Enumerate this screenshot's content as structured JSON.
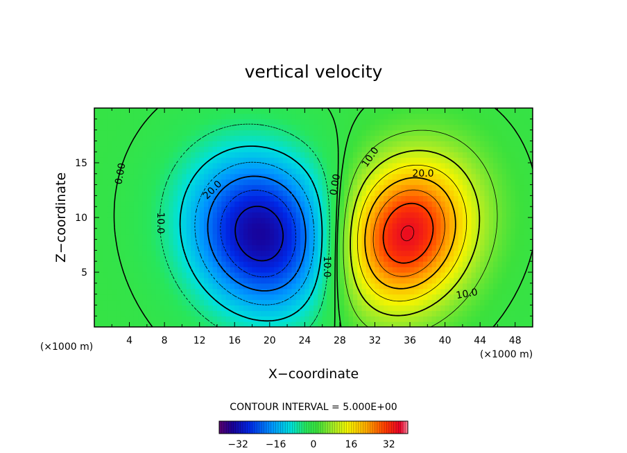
{
  "chart_data": {
    "type": "heatmap",
    "title": "vertical velocity",
    "xlabel": "X−coordinate",
    "ylabel": "Z−coordinate",
    "x_unit": "(×1000 m)",
    "y_unit": "(×1000 m)",
    "xlim": [
      0,
      50
    ],
    "ylim": [
      0,
      20
    ],
    "x_ticks": [
      4,
      8,
      12,
      16,
      20,
      24,
      28,
      32,
      36,
      40,
      44,
      48
    ],
    "y_ticks": [
      5,
      10,
      15
    ],
    "x_tick_labels": [
      "4",
      "8",
      "12",
      "16",
      "20",
      "24",
      "28",
      "32",
      "36",
      "40",
      "44",
      "48"
    ],
    "y_tick_labels": [
      "5",
      "10",
      "15"
    ],
    "contour_interval_text": "CONTOUR INTERVAL = 5.000E+00",
    "contour_interval": 5,
    "colorbar": {
      "range": [
        -40,
        40
      ],
      "ticks": [
        -32,
        -16,
        0,
        16,
        32
      ],
      "tick_labels": [
        "−32",
        "−16",
        "0",
        "16",
        "32"
      ]
    },
    "field": {
      "components": [
        {
          "name": "downdraft",
          "center_x": 19,
          "center_z": 8.5,
          "sigma_x": 6,
          "sigma_z": 5,
          "peak": -34,
          "rotation_deg": -20
        },
        {
          "name": "updraft",
          "center_x": 35.5,
          "center_z": 8.5,
          "sigma_x": 5.5,
          "sigma_z": 4.5,
          "peak": 36,
          "rotation_deg": 30
        }
      ]
    },
    "contour_labels": [
      {
        "text": "0.00",
        "x": 3,
        "z": 14,
        "rotation": -80
      },
      {
        "text": "10.0",
        "x": 7.5,
        "z": 9.5,
        "rotation": 90
      },
      {
        "text": "20.0",
        "x": 13.5,
        "z": 12.5,
        "rotation": -45
      },
      {
        "text": "0.00",
        "x": 27.5,
        "z": 13,
        "rotation": -80
      },
      {
        "text": "10.0",
        "x": 26.5,
        "z": 5.5,
        "rotation": 90
      },
      {
        "text": "10.0",
        "x": 31.5,
        "z": 15.5,
        "rotation": -55
      },
      {
        "text": "20.0",
        "x": 37.5,
        "z": 14,
        "rotation": 0
      },
      {
        "text": "10.0",
        "x": 42.5,
        "z": 3,
        "rotation": -10
      }
    ]
  }
}
